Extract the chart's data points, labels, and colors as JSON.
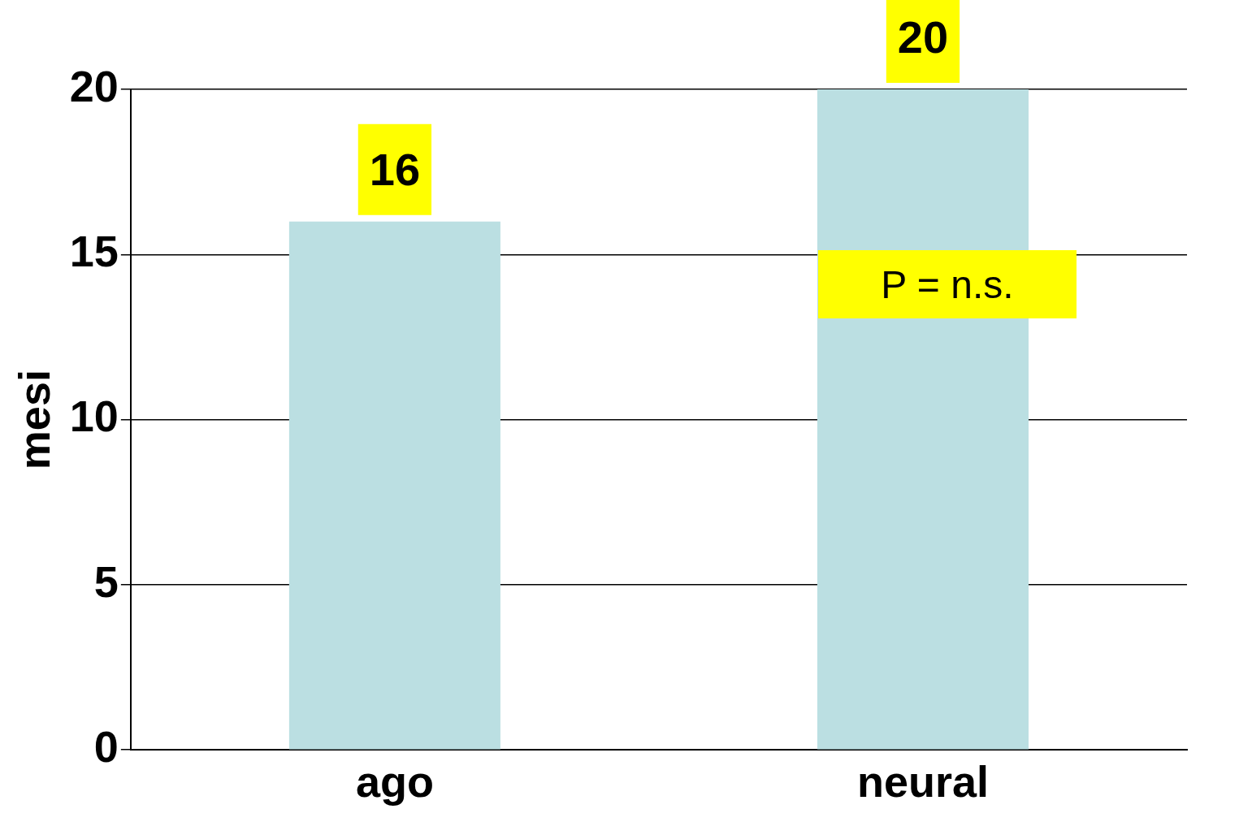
{
  "chart_data": {
    "type": "bar",
    "categories": [
      "ago",
      "neural"
    ],
    "values": [
      16,
      20
    ],
    "color": "#bbdfe2",
    "ylim": [
      0,
      20
    ],
    "yticks": [
      0,
      5,
      10,
      15,
      20
    ],
    "ylabel": "mesi",
    "grid": "y",
    "data_labels": true,
    "legend": false,
    "annotations": [
      "P = n.s."
    ]
  }
}
